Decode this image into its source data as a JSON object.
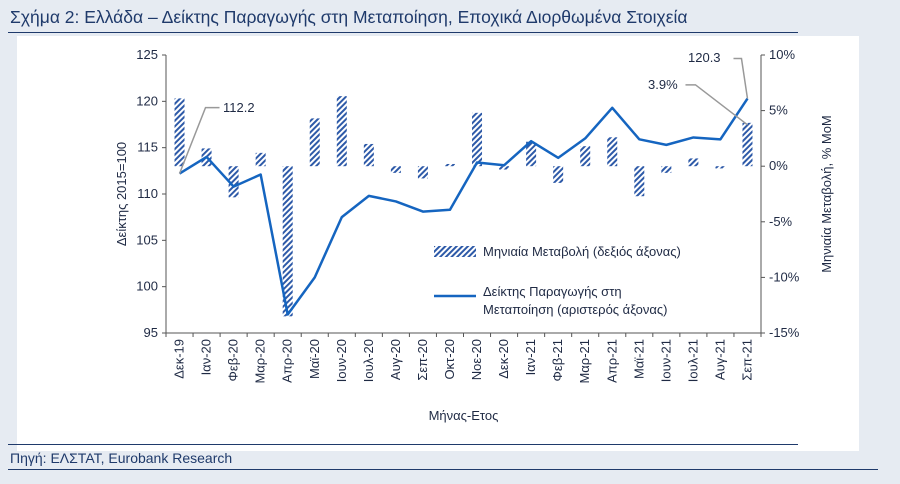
{
  "figure": {
    "title": "Σχήμα 2: Ελλάδα – Δείκτης Παραγωγής στη Μεταποίηση, Εποχικά Διορθωμένα Στοιχεία",
    "source": "Πηγή: ΕΛΣΤΑΤ, Eurobank Research"
  },
  "chart_data": {
    "type": "bar",
    "categories": [
      "Δεκ-19",
      "Ιαν-20",
      "Φεβ-20",
      "Μαρ-20",
      "Απρ-20",
      "Μαϊ-20",
      "Ιουν-20",
      "Ιουλ-20",
      "Αυγ-20",
      "Σεπ-20",
      "Οκτ-20",
      "Νοε-20",
      "Δεκ-20",
      "Ιαν-21",
      "Φεβ-21",
      "Μαρ-21",
      "Απρ-21",
      "Μαϊ-21",
      "Ιουν-21",
      "Ιουλ-21",
      "Αυγ-21",
      "Σεπ-21"
    ],
    "xlabel": "Μήνας-Ετος",
    "ylabel": "Δείκτης 2015=100",
    "y2label": "Μηνιαία Μεταβολή, % MoM",
    "ylim": [
      95,
      125
    ],
    "y2lim": [
      -15,
      10
    ],
    "yticks": [
      "95",
      "100",
      "105",
      "110",
      "115",
      "120",
      "125"
    ],
    "y2ticks": [
      "-15%",
      "-10%",
      "-5%",
      "0%",
      "5%",
      "10%"
    ],
    "series": [
      {
        "name": "Μηνιαία Μεταβολή (δεξιός άξονας)",
        "type": "bar",
        "axis": "right",
        "color": "#2e5aa8",
        "pattern": "diagonal-hatch",
        "values": [
          6.1,
          1.6,
          -2.8,
          1.2,
          -13.5,
          4.3,
          6.3,
          2.0,
          -0.6,
          -1.1,
          0.2,
          4.8,
          -0.3,
          2.2,
          -1.5,
          1.8,
          2.6,
          -2.7,
          -0.6,
          0.7,
          -0.2,
          3.9
        ]
      },
      {
        "name": "Δείκτης Παραγωγής στη Μεταποίηση (αριστερός άξονας)",
        "type": "line",
        "axis": "left",
        "color": "#1565c0",
        "values": [
          112.2,
          114.0,
          110.8,
          112.1,
          97.0,
          101.0,
          107.5,
          109.8,
          109.2,
          108.1,
          108.3,
          113.4,
          113.1,
          115.7,
          113.9,
          116.0,
          119.3,
          115.9,
          115.3,
          116.1,
          115.9,
          120.3
        ]
      }
    ],
    "annotations": [
      "112.2",
      "120.3",
      "3.9%"
    ],
    "legend": [
      "Μηνιαία Μεταβολή (δεξιός άξονας)",
      "Δείκτης Παραγωγής στη",
      "Μεταποίηση (αριστερός άξονας)"
    ],
    "legend_position": "bottom-right inside plot",
    "grid": false
  }
}
